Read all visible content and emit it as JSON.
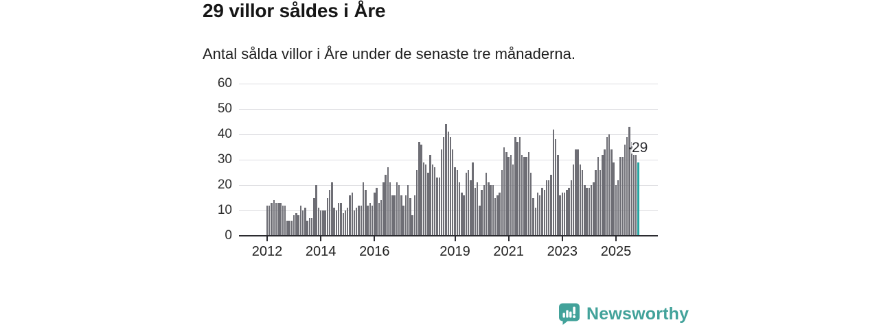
{
  "header": {
    "title": "29 villor såldes i Åre",
    "subtitle": "Antal sålda villor i Åre under de senaste tre månaderna."
  },
  "chart_data": {
    "type": "bar",
    "title": "29 villor såldes i Åre",
    "subtitle": "Antal sålda villor i Åre under de senaste tre månaderna.",
    "frequency": "monthly",
    "x_start": "2012-01",
    "x_end": "2025-11",
    "values": [
      12,
      12,
      13,
      14,
      13,
      13,
      13,
      12,
      12,
      6,
      6,
      6,
      8,
      9,
      8,
      12,
      10,
      11,
      6,
      7,
      7,
      15,
      20,
      11,
      10,
      10,
      10,
      15,
      18,
      21,
      11,
      10,
      13,
      13,
      9,
      10,
      11,
      16,
      17,
      10,
      11,
      12,
      12,
      21,
      18,
      12,
      13,
      12,
      17,
      19,
      13,
      14,
      21,
      24,
      27,
      21,
      16,
      16,
      21,
      20,
      16,
      12,
      16,
      20,
      15,
      8,
      16,
      26,
      37,
      36,
      29,
      28,
      25,
      32,
      28,
      27,
      23,
      23,
      34,
      39,
      44,
      41,
      39,
      34,
      27,
      26,
      21,
      17,
      16,
      25,
      26,
      22,
      29,
      19,
      21,
      12,
      18,
      20,
      25,
      21,
      20,
      20,
      15,
      16,
      17,
      26,
      35,
      33,
      31,
      32,
      28,
      39,
      37,
      39,
      32,
      31,
      31,
      33,
      25,
      15,
      11,
      17,
      16,
      19,
      18,
      22,
      22,
      24,
      42,
      38,
      32,
      16,
      17,
      17,
      18,
      19,
      22,
      28,
      34,
      34,
      28,
      26,
      20,
      19,
      19,
      20,
      21,
      26,
      31,
      26,
      32,
      34,
      39,
      40,
      34,
      29,
      20,
      22,
      31,
      31,
      36,
      39,
      43,
      37,
      32,
      32,
      29
    ],
    "highlight": {
      "index": 166,
      "value": 29,
      "label": "29"
    },
    "ylim": [
      0,
      60
    ],
    "yticks": [
      0,
      10,
      20,
      30,
      40,
      50,
      60
    ],
    "xticks": [
      {
        "label": "2012",
        "index": 0
      },
      {
        "label": "2014",
        "index": 24
      },
      {
        "label": "2016",
        "index": 48
      },
      {
        "label": "2019",
        "index": 84
      },
      {
        "label": "2021",
        "index": 108
      },
      {
        "label": "2023",
        "index": 132
      },
      {
        "label": "2025",
        "index": 156
      }
    ],
    "grid": true,
    "legend": false,
    "colors": {
      "bar": "#6e6e75",
      "highlight": "#26a5a2",
      "axis": "#2b2b30",
      "gridline": "#dcdce0"
    }
  },
  "annotation": {
    "value_label": "29"
  },
  "footer": {
    "brand": "Newsworthy",
    "brand_color": "#42a29a"
  }
}
